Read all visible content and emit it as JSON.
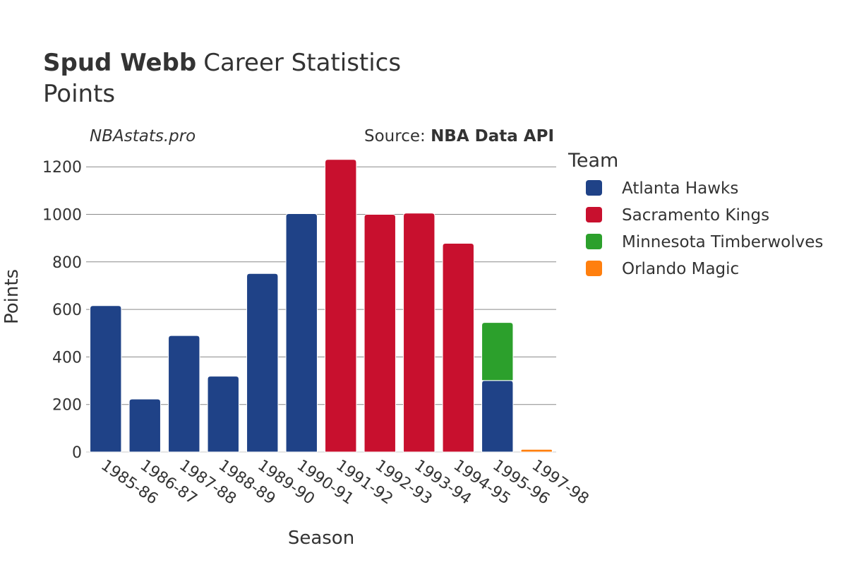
{
  "chart_data": {
    "type": "bar",
    "stacked": true,
    "title": {
      "name": "Spud Webb",
      "rest": "Career Statistics"
    },
    "subtitle": "Points",
    "watermark": "NBAstats.pro",
    "source": {
      "prefix": "Source: ",
      "name": "NBA Data API"
    },
    "xlabel": "Season",
    "ylabel": "Points",
    "ylim": [
      0,
      1260
    ],
    "yticks": [
      0,
      200,
      400,
      600,
      800,
      1000,
      1200
    ],
    "grid": true,
    "legend": {
      "title": "Team",
      "placement": "right"
    },
    "categories": [
      "1985-86",
      "1986-87",
      "1987-88",
      "1988-89",
      "1989-90",
      "1990-91",
      "1991-92",
      "1992-93",
      "1993-94",
      "1994-95",
      "1995-96",
      "1997-98"
    ],
    "series": [
      {
        "name": "Atlanta Hawks",
        "color": "#1f4287",
        "values": [
          616,
          223,
          490,
          319,
          751,
          1003,
          0,
          0,
          0,
          0,
          301,
          0
        ]
      },
      {
        "name": "Sacramento Kings",
        "color": "#c8102e",
        "values": [
          0,
          0,
          0,
          0,
          0,
          0,
          1231,
          1000,
          1005,
          878,
          0,
          0
        ]
      },
      {
        "name": "Minnesota Timberwolves",
        "color": "#2ca02c",
        "values": [
          0,
          0,
          0,
          0,
          0,
          0,
          0,
          0,
          0,
          0,
          244,
          0
        ]
      },
      {
        "name": "Orlando Magic",
        "color": "#ff7f0e",
        "values": [
          0,
          0,
          0,
          0,
          0,
          0,
          0,
          0,
          0,
          0,
          0,
          11
        ]
      }
    ]
  }
}
